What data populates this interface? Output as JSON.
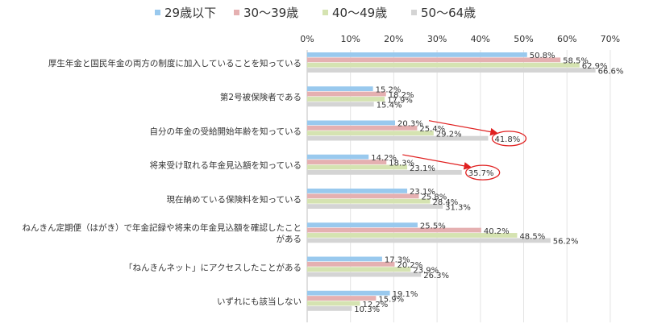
{
  "chart_data": {
    "type": "bar",
    "orientation": "horizontal",
    "title": "",
    "xlabel": "",
    "ylabel": "",
    "xlim": [
      0,
      70
    ],
    "x_ticks": [
      "0%",
      "10%",
      "20%",
      "30%",
      "40%",
      "50%",
      "60%",
      "70%"
    ],
    "grid": "vertical",
    "legend_position": "top",
    "categories": [
      [
        "厚生年金と国民年金の両方の制度に加入していることを知っている"
      ],
      [
        "第2号被保険者である"
      ],
      [
        "自分の年金の受給開始年齢を知っている"
      ],
      [
        "将来受け取れる年金見込額を知っている"
      ],
      [
        "現在納めている保険料を知っている"
      ],
      [
        "ねんきん定期便（はがき）で年金記録や将来の年金見込額を確認したこと",
        "がある"
      ],
      [
        "「ねんきんネット」にアクセスしたことがある"
      ],
      [
        "いずれにも該当しない"
      ]
    ],
    "series": [
      {
        "name": "29歳以下",
        "color": "#99c9ee",
        "values": [
          50.8,
          15.2,
          20.3,
          14.2,
          23.1,
          25.5,
          17.3,
          19.1
        ]
      },
      {
        "name": "30～39歳",
        "color": "#e5b0b1",
        "values": [
          58.5,
          18.2,
          25.4,
          18.3,
          25.8,
          40.2,
          20.2,
          15.9
        ]
      },
      {
        "name": "40～49歳",
        "color": "#d5e3b1",
        "values": [
          62.9,
          17.9,
          29.2,
          23.1,
          28.4,
          48.5,
          23.9,
          12.2
        ]
      },
      {
        "name": "50～64歳",
        "color": "#d4d4d4",
        "values": [
          66.6,
          15.4,
          41.8,
          35.7,
          31.3,
          56.2,
          26.3,
          10.3
        ]
      }
    ],
    "highlights": [
      {
        "category_index": 2,
        "from_series": 0,
        "to_series": 3,
        "label": "41.8%"
      },
      {
        "category_index": 3,
        "from_series": 0,
        "to_series": 3,
        "label": "35.7%"
      }
    ]
  }
}
